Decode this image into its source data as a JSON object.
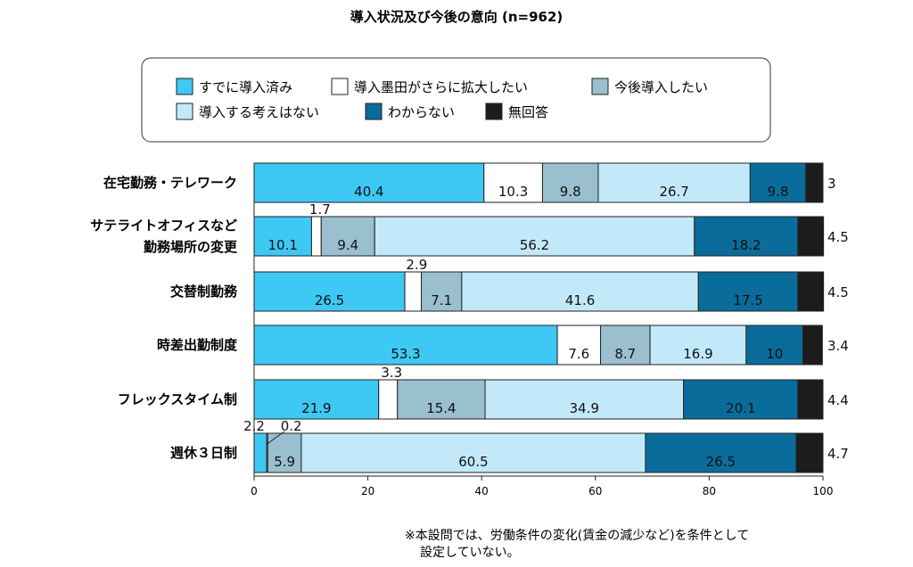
{
  "chart_data": {
    "type": "bar",
    "orientation": "horizontal",
    "stacked": true,
    "title": "導入状況及び今後の意向 (n=962)",
    "categories": [
      [
        "在宅勤務・テレワーク"
      ],
      [
        "サテライトオフィスなど",
        "勤務場所の変更"
      ],
      [
        "交替制勤務"
      ],
      [
        "時差出勤制度"
      ],
      [
        "フレックスタイム制"
      ],
      [
        "週休３日制"
      ]
    ],
    "series": [
      {
        "name": "すでに導入済み",
        "color": "#3ec8f4",
        "values": [
          40.4,
          10.1,
          26.5,
          53.3,
          21.9,
          2.2
        ]
      },
      {
        "name": "導入墨田がさらに拡大したい",
        "color": "#ffffff",
        "values": [
          10.3,
          1.7,
          2.9,
          7.6,
          3.3,
          0.2
        ]
      },
      {
        "name": "今後導入したい",
        "color": "#9abfcf",
        "values": [
          9.8,
          9.4,
          7.1,
          8.7,
          15.4,
          5.9
        ]
      },
      {
        "name": "導入する考えはない",
        "color": "#c2e9f9",
        "values": [
          26.7,
          56.2,
          41.6,
          16.9,
          34.9,
          60.5
        ]
      },
      {
        "name": "わからない",
        "color": "#0a6c9b",
        "values": [
          9.8,
          18.2,
          17.5,
          10,
          20.1,
          26.5
        ]
      },
      {
        "name": "無回答",
        "color": "#1c1c1c",
        "values": [
          3,
          4.5,
          4.5,
          3.4,
          4.4,
          4.7
        ]
      }
    ],
    "xlim": [
      0,
      100
    ],
    "xticks": [
      0,
      20,
      40,
      60,
      80,
      100
    ],
    "legend_position": "top",
    "grid": false
  },
  "legend_rows": [
    [
      0,
      1,
      2
    ],
    [
      3,
      4,
      5
    ]
  ],
  "note_lines": [
    "※本設問では、労働条件の変化(賃金の減少など)を条件として",
    "設定していない。"
  ]
}
